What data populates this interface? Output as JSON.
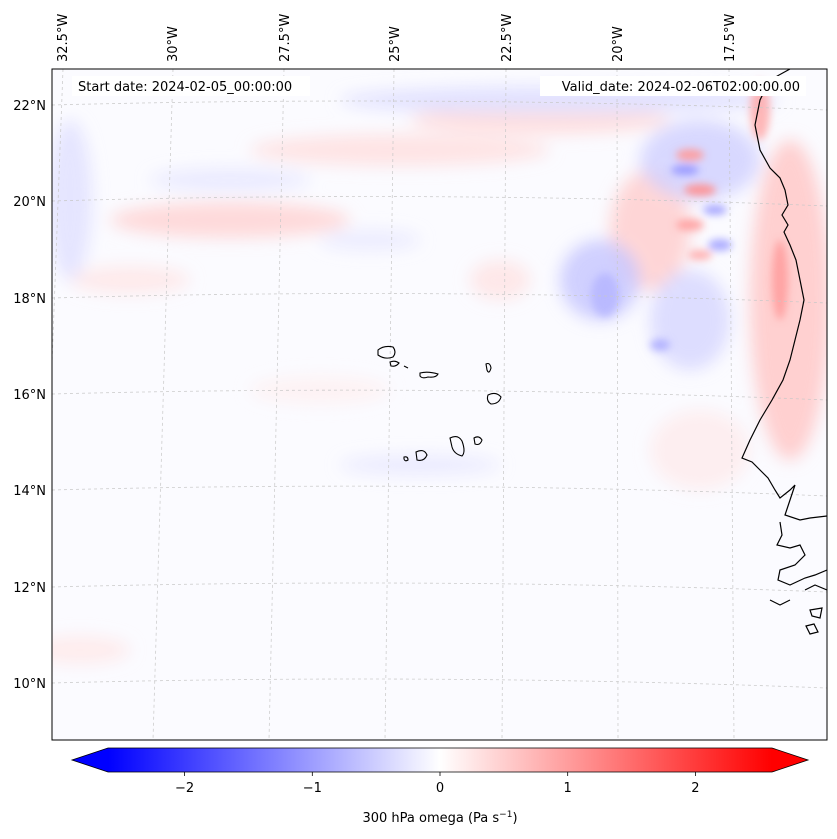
{
  "header": {
    "start_date": "Start date: 2024-02-05_00:00:00",
    "valid_date": "Valid_date: 2024-02-06T02:00:00.00"
  },
  "axes": {
    "longitude_labels": [
      "32.5°W",
      "30°W",
      "27.5°W",
      "25°W",
      "22.5°W",
      "20°W",
      "17.5°W"
    ],
    "latitude_labels": [
      "22°N",
      "20°N",
      "18°N",
      "16°N",
      "14°N",
      "12°N",
      "10°N"
    ],
    "gridlines": "on (dashed)"
  },
  "colorbar": {
    "label": "300 hPa omega (Pa s",
    "label_exponent": "−1",
    "label_close": ")",
    "tick_labels": [
      "−2",
      "−1",
      "0",
      "1",
      "2"
    ],
    "tick_values": [
      -2,
      -1,
      0,
      1,
      2
    ],
    "range": [
      -2.6,
      2.6
    ],
    "extend": "both",
    "colormap": "bwr",
    "color_min": "#0000ff",
    "color_mid": "#ffffff",
    "color_max": "#ff0000"
  },
  "map": {
    "field": "300 hPa omega",
    "coastline_color": "#000000",
    "features": [
      "Cape Verde islands",
      "West African coastline"
    ]
  }
}
